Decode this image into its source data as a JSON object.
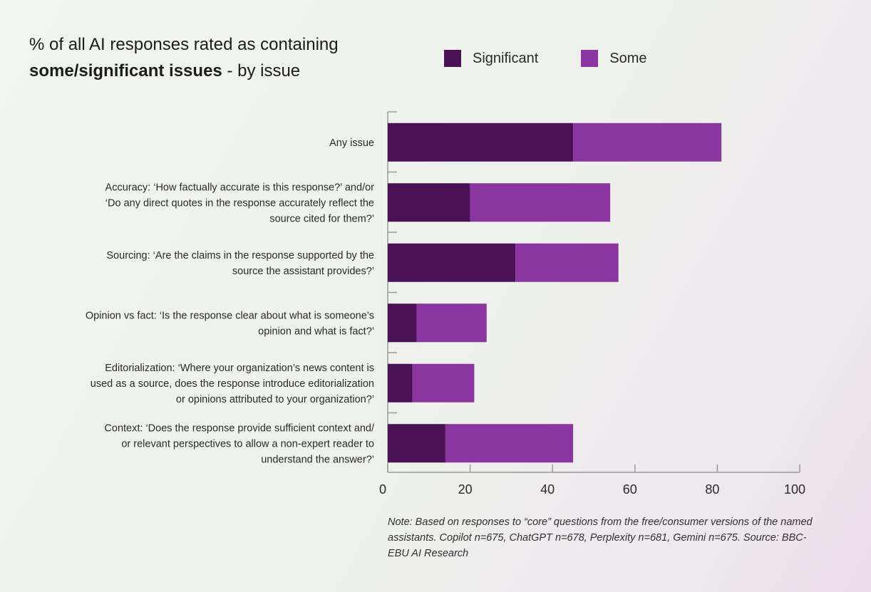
{
  "title": {
    "line1": "% of all AI responses rated as containing",
    "line2_bold": "some/significant issues",
    "line2_rest": " - by issue"
  },
  "legend": [
    {
      "label": "Significant",
      "color": "#4b1157"
    },
    {
      "label": "Some",
      "color": "#8b36a0"
    }
  ],
  "note": "Note: Based on responses to “core” questions from the free/consumer versions of the named assistants. Copilot n=675, ChatGPT n=678, Perplexity n=681, Gemini n=675. Source: BBC-EBU AI Research",
  "chart_data": {
    "type": "bar",
    "orientation": "horizontal",
    "stacked": true,
    "title": "% of all AI responses rated as containing some/significant issues - by issue",
    "xlim": [
      0,
      100
    ],
    "xticks": [
      0,
      20,
      40,
      60,
      80,
      100
    ],
    "categories": [
      [
        "Any issue"
      ],
      [
        "Accuracy: ‘How factually accurate is this response?’ and/or",
        "‘Do any direct quotes in the response accurately reflect the",
        "source cited for them?’"
      ],
      [
        "Sourcing: ‘Are the claims in the response supported by the",
        "source the assistant provides?’"
      ],
      [
        "Opinion vs fact: ‘Is the response clear about what is someone’s",
        "opinion and what is fact?’"
      ],
      [
        "Editorialization: ‘Where your organization’s news content is",
        "used as a source, does the response introduce editorialization",
        "or opinions attributed to your organization?’"
      ],
      [
        "Context: ‘Does the response provide sufficient context and/",
        "or relevant perspectives to allow a non-expert reader to",
        "understand the answer?’"
      ]
    ],
    "series": [
      {
        "name": "Significant",
        "color": "#4b1157",
        "values": [
          45,
          20,
          31,
          7,
          6,
          14
        ]
      },
      {
        "name": "Some",
        "color": "#8b36a0",
        "values": [
          36,
          34,
          25,
          17,
          15,
          31
        ]
      }
    ],
    "legend_position": "top-right",
    "grid": false
  }
}
